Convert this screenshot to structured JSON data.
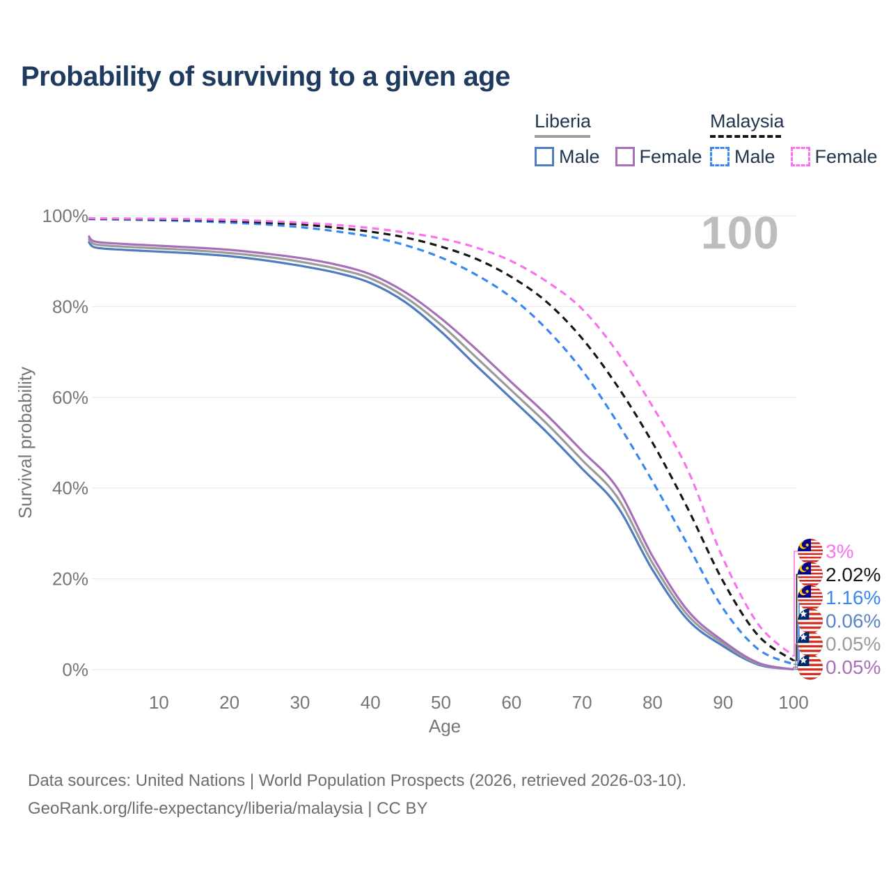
{
  "page": {
    "title": "Probability of surviving to a given age"
  },
  "legend": {
    "groups": [
      {
        "country": "Liberia",
        "line_style": "solid",
        "underline_color": "#9e9e9e",
        "items": [
          {
            "label": "Male",
            "color": "#4f7cbe"
          },
          {
            "label": "Female",
            "color": "#a76fb8"
          }
        ]
      },
      {
        "country": "Malaysia",
        "line_style": "dashed",
        "underline_color": "#151515",
        "items": [
          {
            "label": "Male",
            "color": "#3b87f0"
          },
          {
            "label": "Female",
            "color": "#f973ef"
          }
        ]
      }
    ]
  },
  "watermark": "100",
  "chart_data": {
    "type": "line",
    "title": "Probability of surviving to a given age",
    "xlabel": "Age",
    "ylabel": "Survival probability",
    "xlim": [
      0,
      100
    ],
    "ylim": [
      0,
      100
    ],
    "x_ticks": [
      10,
      20,
      30,
      40,
      50,
      60,
      70,
      80,
      90,
      100
    ],
    "y_ticks": [
      0,
      20,
      40,
      60,
      80,
      100
    ],
    "y_tick_suffix": "%",
    "grid": "horizontal",
    "legend_position": "top-right",
    "ages": [
      0,
      1,
      5,
      10,
      15,
      20,
      25,
      30,
      35,
      40,
      45,
      50,
      55,
      60,
      65,
      70,
      75,
      80,
      85,
      90,
      95,
      100
    ],
    "series": [
      {
        "id": "malaysia_male",
        "name": "Malaysia Male",
        "country": "Malaysia",
        "sex": "male",
        "color": "#3b87f0",
        "dash": true,
        "values": [
          99.3,
          99.25,
          99.15,
          99.0,
          98.8,
          98.5,
          98.1,
          97.5,
          96.6,
          95.4,
          93.5,
          90.8,
          87.0,
          82.0,
          75.0,
          66.0,
          54.5,
          41.5,
          27.5,
          13.5,
          4.5,
          1.16
        ]
      },
      {
        "id": "malaysia_all",
        "name": "Malaysia Both sexes",
        "country": "Malaysia",
        "sex": "all",
        "color": "#161616",
        "dash": true,
        "values": [
          99.4,
          99.35,
          99.3,
          99.2,
          99.05,
          98.85,
          98.5,
          98.1,
          97.4,
          96.5,
          95.2,
          93.2,
          90.5,
          86.5,
          81.0,
          73.0,
          62.5,
          50.0,
          35.5,
          19.5,
          7.5,
          2.02
        ]
      },
      {
        "id": "malaysia_female",
        "name": "Malaysia Female",
        "country": "Malaysia",
        "sex": "female",
        "color": "#f973ef",
        "dash": true,
        "values": [
          99.5,
          99.45,
          99.4,
          99.35,
          99.25,
          99.1,
          98.85,
          98.5,
          98.0,
          97.3,
          96.3,
          95.0,
          93.0,
          90.0,
          85.5,
          79.5,
          70.0,
          58.0,
          44.0,
          24.5,
          10.0,
          3.0
        ]
      },
      {
        "id": "liberia_male",
        "name": "Liberia Male",
        "country": "Liberia",
        "sex": "male",
        "color": "#4f7cbe",
        "dash": false,
        "values": [
          94.4,
          93.0,
          92.5,
          92.1,
          91.7,
          91.1,
          90.2,
          89.0,
          87.5,
          85.2,
          80.9,
          74.5,
          67.0,
          59.7,
          52.3,
          44.3,
          36.0,
          22.0,
          11.0,
          5.2,
          1.1,
          0.06
        ]
      },
      {
        "id": "liberia_all",
        "name": "Liberia Both sexes",
        "country": "Liberia",
        "sex": "all",
        "color": "#9b9b9b",
        "dash": false,
        "values": [
          95.0,
          93.7,
          93.2,
          92.8,
          92.4,
          91.8,
          91.0,
          89.9,
          88.4,
          86.2,
          82.0,
          76.0,
          68.8,
          61.5,
          54.2,
          46.2,
          38.0,
          23.5,
          12.0,
          5.8,
          1.3,
          0.05
        ]
      },
      {
        "id": "liberia_female",
        "name": "Liberia Female",
        "country": "Liberia",
        "sex": "female",
        "color": "#a76fb8",
        "dash": false,
        "values": [
          95.6,
          94.3,
          93.8,
          93.4,
          93.0,
          92.5,
          91.7,
          90.7,
          89.3,
          87.1,
          83.1,
          77.4,
          70.6,
          63.3,
          56.1,
          48.2,
          40.0,
          25.0,
          13.0,
          6.3,
          1.5,
          0.05
        ]
      }
    ],
    "end_labels": [
      {
        "text": "3%",
        "series": "malaysia_female",
        "flag": "malaysia",
        "color": "#f973ef"
      },
      {
        "text": "2.02%",
        "series": "malaysia_all",
        "flag": "malaysia",
        "color": "#161616"
      },
      {
        "text": "1.16%",
        "series": "malaysia_male",
        "flag": "malaysia",
        "color": "#3b87f0"
      },
      {
        "text": "0.06%",
        "series": "liberia_male",
        "flag": "liberia",
        "color": "#5b84c8"
      },
      {
        "text": "0.05%",
        "series": "liberia_all",
        "flag": "liberia",
        "color": "#9b9b9b"
      },
      {
        "text": "0.05%",
        "series": "liberia_female",
        "flag": "liberia",
        "color": "#a76fb8"
      }
    ]
  },
  "footer": {
    "line1": "Data sources: United Nations | World Population Prospects (2026, retrieved 2026-03-10).",
    "line2": "GeoRank.org/life-expectancy/liberia/malaysia | CC BY"
  }
}
